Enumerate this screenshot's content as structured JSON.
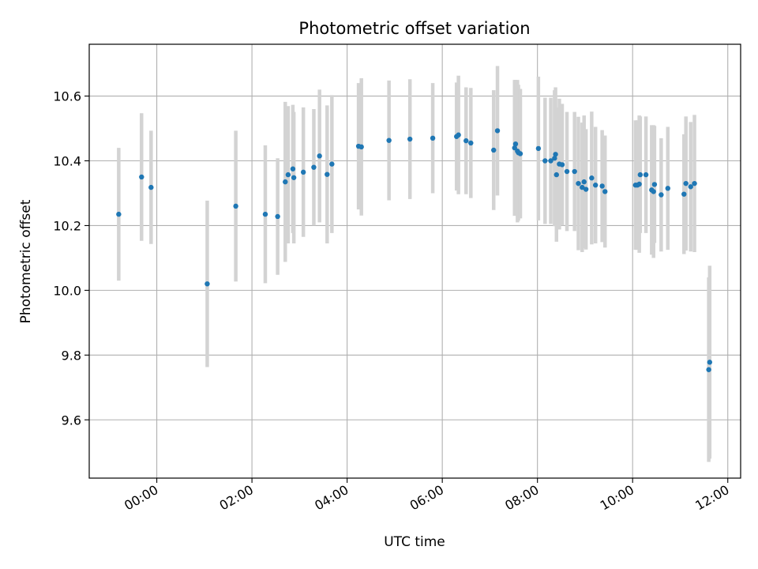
{
  "chart_data": {
    "type": "scatter",
    "title": "Photometric offset variation",
    "xlabel": "UTC time",
    "ylabel": "Photometric offset",
    "x_unit": "hours",
    "xlim": [
      -1.42,
      12.27
    ],
    "ylim": [
      9.42,
      10.76
    ],
    "x_ticks": [
      0,
      2,
      4,
      6,
      8,
      10,
      12
    ],
    "x_tick_labels": [
      "00:00",
      "02:00",
      "04:00",
      "06:00",
      "08:00",
      "10:00",
      "12:00"
    ],
    "y_ticks": [
      9.6,
      9.8,
      10.0,
      10.2,
      10.4,
      10.6
    ],
    "y_tick_labels": [
      "9.6",
      "9.8",
      "10.0",
      "10.2",
      "10.4",
      "10.6"
    ],
    "grid": true,
    "colors": {
      "point": "#1f77b4",
      "errorbar": "#d3d3d3",
      "grid": "#b0b0b0",
      "axis": "#000000"
    },
    "series": [
      {
        "x": [
          -0.8,
          -0.32,
          -0.12,
          1.06,
          1.66,
          2.28,
          2.54,
          2.7,
          2.76,
          2.86,
          2.88,
          3.08,
          3.3,
          3.42,
          3.58,
          3.68,
          4.24,
          4.3,
          4.88,
          5.32,
          5.8,
          6.3,
          6.34,
          6.5,
          6.6,
          7.08,
          7.16,
          7.52,
          7.54,
          7.58,
          7.6,
          7.64,
          8.02,
          8.16,
          8.28,
          8.36,
          8.38,
          8.4,
          8.46,
          8.52,
          8.62,
          8.78,
          8.86,
          8.94,
          8.98,
          9.02,
          9.14,
          9.22,
          9.36,
          9.42,
          10.06,
          10.1,
          10.14,
          10.16,
          10.28,
          10.4,
          10.44,
          10.46,
          10.6,
          10.74,
          11.08,
          11.12,
          11.22,
          11.3,
          11.6,
          11.62
        ],
        "y": [
          10.235,
          10.35,
          10.318,
          10.02,
          10.26,
          10.235,
          10.228,
          10.335,
          10.357,
          10.375,
          10.348,
          10.365,
          10.38,
          10.415,
          10.358,
          10.39,
          10.445,
          10.443,
          10.463,
          10.467,
          10.47,
          10.475,
          10.48,
          10.462,
          10.455,
          10.433,
          10.493,
          10.44,
          10.452,
          10.43,
          10.425,
          10.422,
          10.438,
          10.4,
          10.4,
          10.408,
          10.42,
          10.357,
          10.39,
          10.388,
          10.367,
          10.367,
          10.33,
          10.318,
          10.335,
          10.312,
          10.347,
          10.325,
          10.322,
          10.305,
          10.325,
          10.325,
          10.328,
          10.357,
          10.357,
          10.31,
          10.305,
          10.327,
          10.295,
          10.315,
          10.297,
          10.33,
          10.32,
          10.33,
          9.755,
          9.778
        ],
        "yerr": [
          0.205,
          0.197,
          0.175,
          0.257,
          0.233,
          0.213,
          0.18,
          0.247,
          0.212,
          0.198,
          0.203,
          0.2,
          0.18,
          0.205,
          0.213,
          0.213,
          0.195,
          0.212,
          0.185,
          0.185,
          0.17,
          0.167,
          0.183,
          0.165,
          0.17,
          0.185,
          0.2,
          0.21,
          0.198,
          0.22,
          0.21,
          0.2,
          0.222,
          0.195,
          0.195,
          0.21,
          0.207,
          0.207,
          0.202,
          0.188,
          0.184,
          0.184,
          0.206,
          0.2,
          0.205,
          0.186,
          0.205,
          0.18,
          0.173,
          0.173,
          0.2,
          0.2,
          0.212,
          0.18,
          0.18,
          0.2,
          0.205,
          0.181,
          0.175,
          0.19,
          0.185,
          0.207,
          0.2,
          0.212,
          0.285,
          0.298
        ]
      }
    ]
  }
}
